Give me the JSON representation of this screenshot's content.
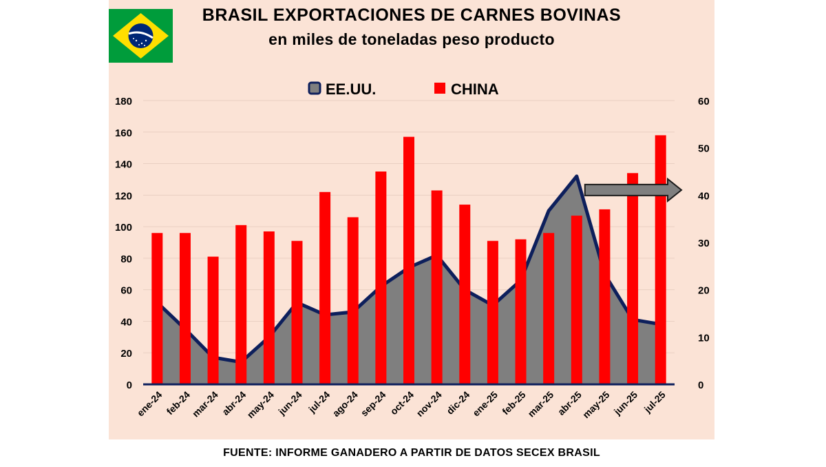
{
  "title": "BRASIL EXPORTACIONES DE CARNES BOVINAS",
  "subtitle": "en miles de toneladas peso producto",
  "footer": "FUENTE: INFORME GANADERO A PARTIR DE DATOS SECEX BRASIL",
  "flag_icon": "brazil-flag-icon",
  "colors": {
    "background": "#fbe3d6",
    "usa_fill": "#7f7f7f",
    "usa_line": "#0d1f5c",
    "china_bar": "#ff0000",
    "arrow": "#7f7f7f"
  },
  "chart_data": {
    "type": "bar",
    "categories": [
      "ene-24",
      "feb-24",
      "mar-24",
      "abr-24",
      "may-24",
      "jun-24",
      "jul-24",
      "ago-24",
      "sep-24",
      "oct-24",
      "nov-24",
      "dic-24",
      "ene-25",
      "feb-25",
      "mar-25",
      "abr-25",
      "may-25",
      "jun-25",
      "jul-25"
    ],
    "left_axis": {
      "ylim": [
        0,
        180
      ],
      "ticks": [
        0,
        20,
        40,
        60,
        80,
        100,
        120,
        140,
        160,
        180
      ]
    },
    "right_axis": {
      "ylim": [
        0,
        60
      ],
      "ticks": [
        0,
        10,
        20,
        30,
        40,
        50,
        60
      ]
    },
    "series": [
      {
        "name": "EE.UU.",
        "type": "area",
        "axis": "right",
        "values": [
          17.3,
          11.7,
          5.7,
          4.7,
          10.0,
          17.3,
          14.7,
          15.3,
          20.7,
          24.7,
          27.3,
          20.0,
          16.7,
          22.0,
          36.7,
          44.0,
          23.3,
          13.7,
          12.7
        ]
      },
      {
        "name": "CHINA",
        "type": "bar",
        "axis": "left",
        "values": [
          96,
          96,
          81,
          101,
          97,
          91,
          122,
          106,
          135,
          157,
          123,
          114,
          91,
          92,
          96,
          107,
          111,
          134,
          158
        ]
      }
    ],
    "annotations": [
      "arrow from abr-25 peak pointing to right axis"
    ],
    "legend_position": "top-center",
    "grid": "horizontal"
  }
}
